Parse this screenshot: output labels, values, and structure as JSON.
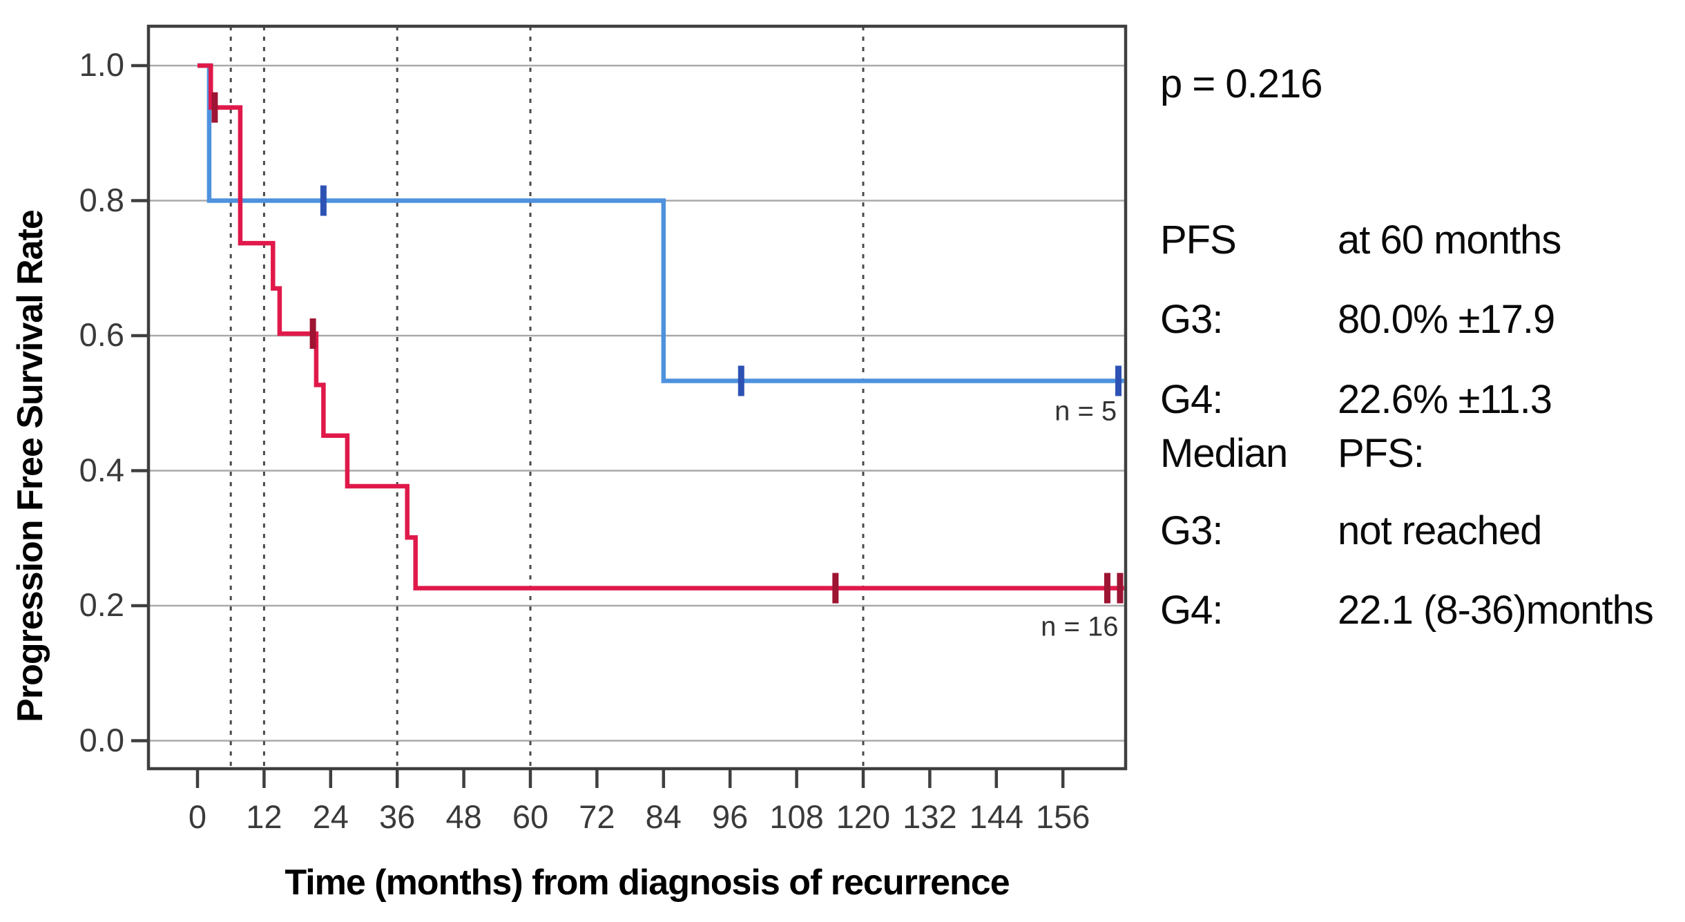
{
  "chart_data": {
    "type": "line",
    "subtype": "kaplan-meier-step-plot",
    "title": "",
    "xlabel": "Time (months) from diagnosis of recurrence",
    "ylabel": "Progression Free Survival Rate",
    "x_ticks": [
      0,
      12,
      24,
      36,
      48,
      60,
      72,
      84,
      96,
      108,
      120,
      132,
      144,
      156
    ],
    "y_ticks": [
      "1.0",
      "0.8",
      "0.6",
      "0.4",
      "0.2",
      "0.0"
    ],
    "y_tick_values": [
      1.0,
      0.8,
      0.6,
      0.4,
      0.2,
      0.0
    ],
    "xlim": [
      -9,
      167.5
    ],
    "ylim": [
      -0.04,
      1.06
    ],
    "grid": "horizontal solid gray; dashed vertical reference lines",
    "legend_position": "none",
    "dashed_vlines_x": [
      6,
      12,
      36,
      60,
      120
    ],
    "series": [
      {
        "name": "G3",
        "n": 5,
        "color": "#4e92de",
        "censor_color": "#2d52b4",
        "steps": [
          [
            0,
            1.0
          ],
          [
            2.1,
            1.0
          ],
          [
            2.1,
            0.8
          ],
          [
            84,
            0.8
          ],
          [
            84,
            0.533
          ],
          [
            167,
            0.533
          ]
        ],
        "censor_marks": [
          [
            22.7,
            0.8
          ],
          [
            98,
            0.533
          ],
          [
            166,
            0.533
          ]
        ]
      },
      {
        "name": "G4",
        "n": 16,
        "color": "#e0194a",
        "censor_color": "#9e1433",
        "steps": [
          [
            0,
            1.0
          ],
          [
            2.4,
            1.0
          ],
          [
            2.4,
            0.938
          ],
          [
            7.7,
            0.938
          ],
          [
            7.7,
            0.737
          ],
          [
            13.6,
            0.737
          ],
          [
            13.6,
            0.67
          ],
          [
            14.8,
            0.67
          ],
          [
            14.8,
            0.603
          ],
          [
            21.4,
            0.603
          ],
          [
            21.4,
            0.527
          ],
          [
            22.7,
            0.527
          ],
          [
            22.7,
            0.452
          ],
          [
            27,
            0.452
          ],
          [
            27,
            0.377
          ],
          [
            37.8,
            0.377
          ],
          [
            37.8,
            0.301
          ],
          [
            39.3,
            0.301
          ],
          [
            39.3,
            0.226
          ],
          [
            167,
            0.226
          ]
        ],
        "censor_marks": [
          [
            3.1,
            0.938
          ],
          [
            20.8,
            0.603
          ],
          [
            115,
            0.226
          ],
          [
            164,
            0.226
          ],
          [
            166.3,
            0.226
          ]
        ]
      }
    ],
    "annotations": [
      {
        "text": "n = 5",
        "x": 160.1,
        "y": 0.487
      },
      {
        "text": "n = 16",
        "x": 159.0,
        "y": 0.168
      }
    ]
  },
  "side_panel": {
    "p_value": "p = 0.216",
    "block1": {
      "rows": [
        {
          "label": "PFS",
          "value": "at 60 months"
        },
        {
          "label": "G3:",
          "value": "80.0% ±17.9"
        },
        {
          "label": "G4:",
          "value": "22.6% ±11.3"
        }
      ]
    },
    "block2": {
      "rows": [
        {
          "label": "Median",
          "value": "PFS:"
        },
        {
          "label": "G3:",
          "value": "not reached"
        },
        {
          "label": "G4:",
          "value": "22.1 (8-36)months"
        }
      ]
    }
  },
  "colors": {
    "background": "#ffffff",
    "plot_border": "#3f3f3f",
    "gridline": "#a9a9a9",
    "dashed_line": "#4a4a4a",
    "tick_label": "#3a3a3a",
    "g3_line": "#4e92de",
    "g3_censor": "#2d52b4",
    "g4_line": "#e0194a",
    "g4_censor": "#9e1433"
  }
}
